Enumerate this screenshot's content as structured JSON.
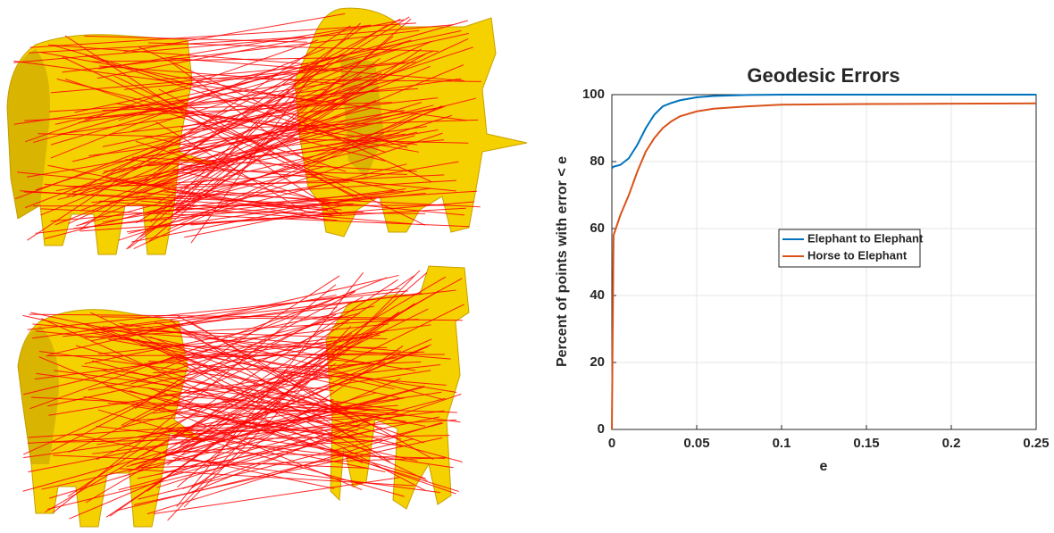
{
  "chart_data": {
    "type": "line",
    "title": "Geodesic Errors",
    "x_label": "e",
    "y_label": "Percent of points with error < e",
    "x": [
      0,
      0.001,
      0.005,
      0.01,
      0.015,
      0.02,
      0.025,
      0.03,
      0.035,
      0.04,
      0.05,
      0.06,
      0.08,
      0.1,
      0.15,
      0.2,
      0.25
    ],
    "series": [
      {
        "name": "Elephant to Elephant",
        "color": "#0072bd",
        "values": [
          78,
          78.5,
          79,
          81,
          85,
          90,
          94,
          96.5,
          97.5,
          98.3,
          99.2,
          99.6,
          99.9,
          100,
          100,
          100,
          100
        ]
      },
      {
        "name": "Horse to Elephant",
        "color": "#d95319",
        "values": [
          0,
          58,
          64,
          70,
          77,
          83,
          87,
          90,
          92,
          93.5,
          95,
          95.8,
          96.5,
          97,
          97.2,
          97.3,
          97.4
        ]
      }
    ],
    "xlim": [
      0,
      0.25
    ],
    "xticks": [
      0,
      0.05,
      0.1,
      0.15,
      0.2,
      0.25
    ],
    "ylim": [
      0,
      100
    ],
    "yticks": [
      0,
      20,
      40,
      60,
      80,
      100
    ],
    "grid": true,
    "legend": "center"
  }
}
